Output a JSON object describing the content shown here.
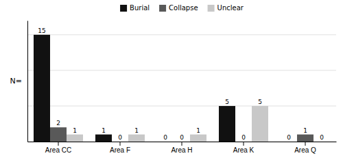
{
  "chart_data": {
    "type": "bar",
    "categories": [
      "Area CC",
      "Area F",
      "Area H",
      "Area K",
      "Area Q"
    ],
    "series": [
      {
        "name": "Burial",
        "color": "#111111",
        "values": [
          15,
          1,
          0,
          5,
          0
        ]
      },
      {
        "name": "Collapse",
        "color": "#595959",
        "values": [
          2,
          0,
          0,
          0,
          1
        ]
      },
      {
        "name": "Unclear",
        "color": "#c8c8c8",
        "values": [
          1,
          1,
          1,
          5,
          0
        ]
      }
    ],
    "ylabel": "N=",
    "ylim": [
      0,
      17
    ],
    "yticks": [
      0,
      5,
      10,
      15
    ],
    "grid": true,
    "legend": "top",
    "data_labels": true,
    "tick_labels": "x"
  }
}
